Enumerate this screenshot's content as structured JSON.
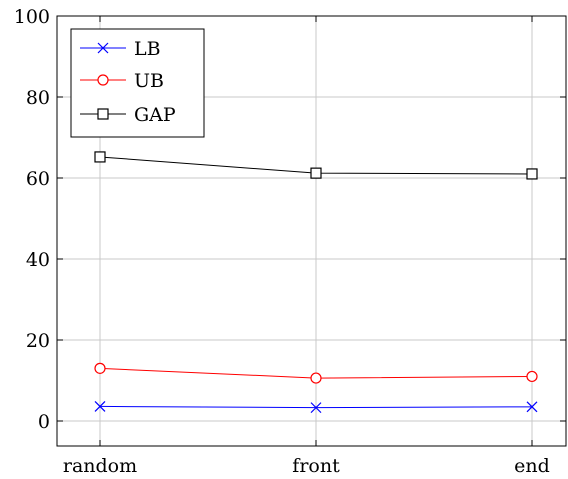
{
  "chart_data": {
    "type": "line",
    "categories": [
      "random",
      "front",
      "end"
    ],
    "series": [
      {
        "name": "LB",
        "values": [
          3.6,
          3.3,
          3.5
        ],
        "color": "#0000ff",
        "marker": "x"
      },
      {
        "name": "UB",
        "values": [
          13.0,
          10.6,
          11.0
        ],
        "color": "#ff0000",
        "marker": "circle"
      },
      {
        "name": "GAP",
        "values": [
          65.2,
          61.2,
          61.0
        ],
        "color": "#000000",
        "marker": "square"
      }
    ],
    "ylim": [
      -6.5,
      100
    ],
    "yticks": [
      0,
      20,
      40,
      60,
      80,
      100
    ],
    "grid": true,
    "legend_position": "top-left",
    "title": "",
    "xlabel": "",
    "ylabel": ""
  }
}
